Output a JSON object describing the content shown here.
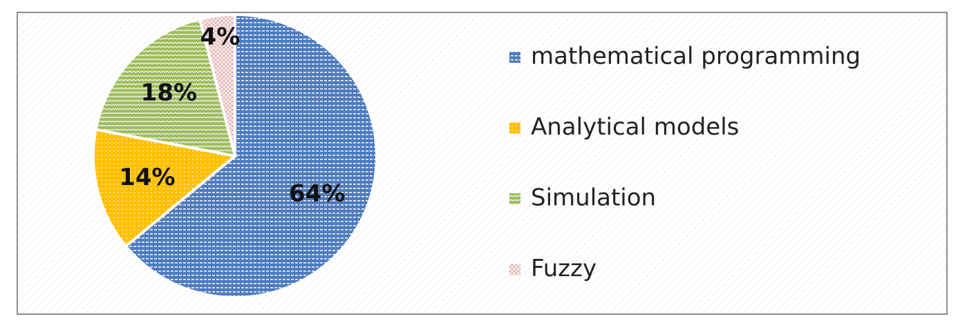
{
  "chart_data": {
    "type": "pie",
    "categories": [
      "mathematical programming",
      "Analytical models",
      "Simulation",
      "Fuzzy"
    ],
    "values": [
      64,
      14,
      18,
      4
    ],
    "value_labels": [
      "64%",
      "14%",
      "18%",
      "4%"
    ],
    "colors": [
      "#4f7bbf",
      "#ffc000",
      "#9bbb59",
      "#e6b3b3"
    ],
    "legend": "right"
  }
}
